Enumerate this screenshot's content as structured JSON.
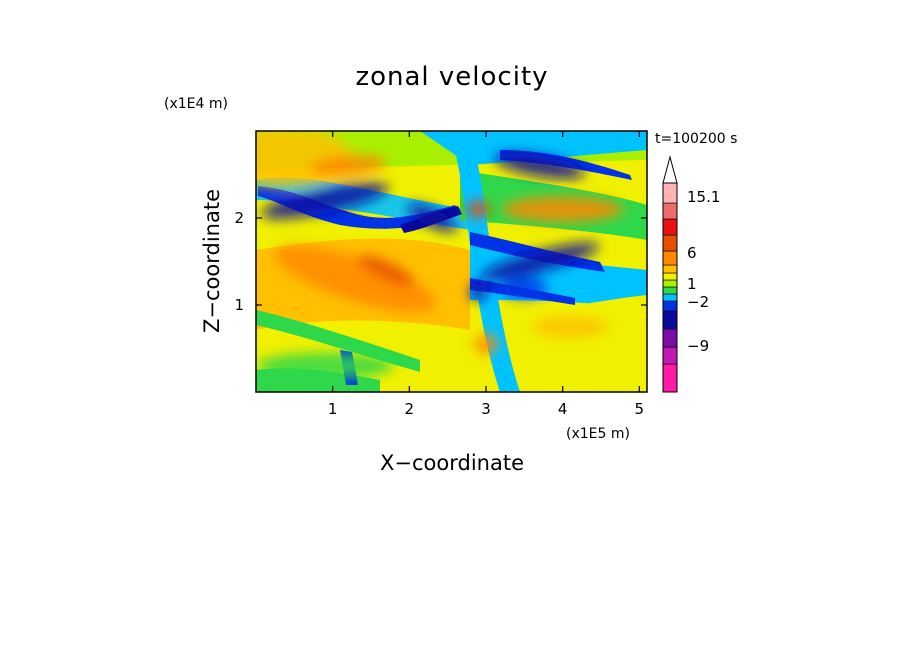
{
  "chart_data": {
    "type": "heatmap",
    "title": "zonal velocity",
    "xlabel": "X−coordinate",
    "ylabel": "Z−coordinate",
    "x_unit": "(x1E5 m)",
    "y_unit": "(x1E4 m)",
    "time_label": "t=100200 s",
    "xlim": [
      0.0,
      5.1
    ],
    "ylim": [
      0.0,
      3.0
    ],
    "x_ticks": [
      "1",
      "2",
      "3",
      "4",
      "5"
    ],
    "x_tick_values": [
      1,
      2,
      3,
      4,
      5
    ],
    "y_ticks": [
      "1",
      "2"
    ],
    "y_tick_values": [
      1,
      2
    ],
    "grid": false,
    "colorbar": {
      "colors": [
        "#ff1aa8",
        "#c219b3",
        "#7a0fa8",
        "#0a0a9e",
        "#0033e6",
        "#00c2ff",
        "#2ed84a",
        "#a8f000",
        "#f0f000",
        "#ffc000",
        "#ff8800",
        "#e84e00",
        "#e81010",
        "#ee6c6c",
        "#ffb3b3"
      ],
      "level_labels": [
        "−9",
        "−2",
        "1",
        "6",
        "15.1"
      ],
      "extend_max": true
    },
    "regions": [
      {
        "level": 9,
        "cx": 0.35,
        "cy": 2.7,
        "rx": 0.9,
        "ry": 0.35,
        "rot": 0
      },
      {
        "level": 10,
        "cx": 1.2,
        "cy": 2.6,
        "rx": 0.5,
        "ry": 0.12,
        "rot": -5
      },
      {
        "level": 3,
        "cx": 0.9,
        "cy": 2.2,
        "rx": 0.85,
        "ry": 0.14,
        "rot": -12
      },
      {
        "level": 3,
        "cx": 2.3,
        "cy": 2.0,
        "rx": 0.35,
        "ry": 0.1,
        "rot": 25
      },
      {
        "level": 10,
        "cx": 1.3,
        "cy": 1.3,
        "rx": 1.1,
        "ry": 0.25,
        "rot": 18
      },
      {
        "level": 11,
        "cx": 1.7,
        "cy": 1.4,
        "rx": 0.4,
        "ry": 0.1,
        "rot": 25
      },
      {
        "level": 3,
        "cx": 3.7,
        "cy": 1.5,
        "rx": 0.8,
        "ry": 0.12,
        "rot": -15
      },
      {
        "level": 3,
        "cx": 3.7,
        "cy": 2.6,
        "rx": 0.6,
        "ry": 0.12,
        "rot": 10
      },
      {
        "level": 11,
        "cx": 2.9,
        "cy": 2.1,
        "rx": 0.15,
        "ry": 0.1,
        "rot": 0
      },
      {
        "level": 10,
        "cx": 4.0,
        "cy": 2.1,
        "rx": 0.8,
        "ry": 0.15,
        "rot": 0
      },
      {
        "level": 4,
        "cx": 3.5,
        "cy": 1.2,
        "rx": 0.3,
        "ry": 0.12,
        "rot": 0
      },
      {
        "level": 3,
        "cx": 2.9,
        "cy": 1.15,
        "rx": 0.12,
        "ry": 0.1,
        "rot": 0
      },
      {
        "level": 10,
        "cx": 3.0,
        "cy": 0.55,
        "rx": 0.15,
        "ry": 0.12,
        "rot": 0
      },
      {
        "level": 9,
        "cx": 4.1,
        "cy": 0.75,
        "rx": 0.5,
        "ry": 0.12,
        "rot": 0
      },
      {
        "level": 6,
        "cx": 0.9,
        "cy": 0.3,
        "rx": 0.9,
        "ry": 0.15,
        "rot": 0
      }
    ]
  }
}
